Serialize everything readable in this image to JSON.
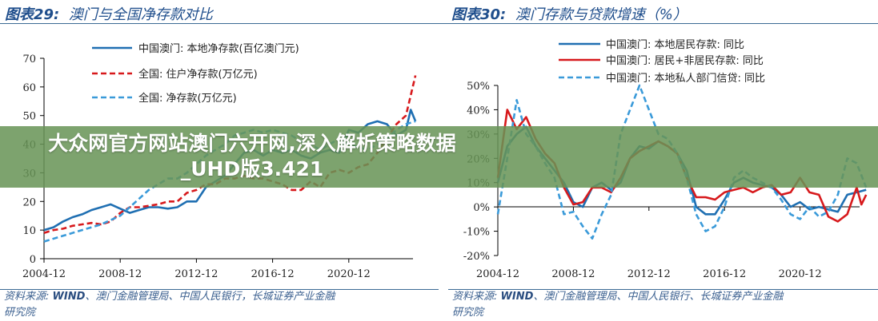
{
  "banner": {
    "text": "大众网官方网站澳门六开网,深入解析策略数据_UHD版3.421"
  },
  "panels": [
    {
      "title_prefix": "图表29:",
      "title_text": "澳门与全国净存款对比",
      "source_label": "资料来源:",
      "source_wind": "WIND",
      "source_rest": "、澳门金融管理局、中国人民银行，长城证券产业金融",
      "source_line2": "研究院"
    },
    {
      "title_prefix": "图表30:",
      "title_text": "澳门存款与贷款增速（%）",
      "source_label": "资料来源:",
      "source_wind": "WIND",
      "source_rest": "、澳门金融管理局、中国人民银行、长城证券产业金融",
      "source_line2": "研究院"
    }
  ],
  "chart_data": [
    {
      "type": "line",
      "title": "澳门与全国净存款对比",
      "ylim": [
        0,
        70
      ],
      "yticks": [
        "0",
        "10",
        "20",
        "30",
        "40",
        "50",
        "60",
        "70"
      ],
      "yticks_values": [
        0,
        10,
        20,
        30,
        40,
        50,
        60,
        70
      ],
      "xticks": [
        "2004-12",
        "2008-12",
        "2012-12",
        "2016-12",
        "2020-12"
      ],
      "grid": false,
      "legend": "top-left",
      "series": [
        {
          "name": "中国澳门: 本地净存款(百亿澳门元)",
          "color": "#1f6fb2",
          "dash": false,
          "x": [
            "2004-12",
            "2005-06",
            "2005-12",
            "2006-06",
            "2006-12",
            "2007-06",
            "2007-12",
            "2008-06",
            "2008-12",
            "2009-06",
            "2009-12",
            "2010-06",
            "2010-12",
            "2011-06",
            "2011-12",
            "2012-06",
            "2012-12",
            "2013-06",
            "2013-12",
            "2014-06",
            "2014-12",
            "2015-06",
            "2015-12",
            "2016-06",
            "2016-12",
            "2017-06",
            "2017-12",
            "2018-06",
            "2018-12",
            "2019-06",
            "2019-12",
            "2020-06",
            "2020-12",
            "2021-06",
            "2021-12",
            "2022-06",
            "2022-12",
            "2023-06",
            "2023-12",
            "2024-03",
            "2024-06"
          ],
          "values": [
            10,
            11,
            13,
            14.5,
            15.5,
            17,
            18,
            19,
            17.5,
            16,
            17,
            18,
            18,
            17.5,
            18,
            20,
            20,
            25,
            27,
            29,
            33,
            37,
            38,
            36,
            38,
            37,
            38,
            36,
            35,
            37,
            38,
            37,
            45,
            44,
            47,
            48,
            47,
            43,
            45,
            52,
            48
          ]
        },
        {
          "name": "全国: 住户净存款(万亿元)",
          "color": "#d7191c",
          "dash": true,
          "x": [
            "2004-12",
            "2005-06",
            "2005-12",
            "2006-06",
            "2006-12",
            "2007-06",
            "2007-12",
            "2008-06",
            "2008-12",
            "2009-06",
            "2009-12",
            "2010-06",
            "2010-12",
            "2011-06",
            "2011-12",
            "2012-06",
            "2012-12",
            "2013-06",
            "2013-12",
            "2014-06",
            "2014-12",
            "2015-06",
            "2015-12",
            "2016-06",
            "2016-12",
            "2017-06",
            "2017-12",
            "2018-06",
            "2018-12",
            "2019-06",
            "2019-12",
            "2020-06",
            "2020-12",
            "2021-06",
            "2021-12",
            "2022-06",
            "2022-12",
            "2023-06",
            "2023-12",
            "2024-06"
          ],
          "values": [
            9,
            10,
            10.5,
            11.5,
            12,
            12.5,
            12,
            13,
            16,
            18,
            18,
            18.5,
            19,
            20,
            20,
            23,
            24,
            26,
            26,
            28,
            28,
            29,
            28,
            28,
            27,
            26,
            24,
            24,
            27,
            25,
            30,
            31,
            30,
            32,
            33,
            37,
            42,
            47,
            50,
            64
          ]
        },
        {
          "name": "全国: 净存款(万亿元)",
          "color": "#3a9ad9",
          "dash": true,
          "x": [
            "2004-12",
            "2005-12",
            "2006-12",
            "2007-12",
            "2008-12",
            "2009-06",
            "2009-12",
            "2010-06",
            "2010-12",
            "2011-06",
            "2011-12",
            "2012-06",
            "2012-12",
            "2013-06",
            "2013-12",
            "2014-06",
            "2014-12",
            "2015-06",
            "2015-12",
            "2016-06",
            "2016-12",
            "2017-06",
            "2017-12",
            "2018-06",
            "2018-12",
            "2019-06",
            "2019-12",
            "2020-06",
            "2020-12",
            "2021-06",
            "2021-12",
            "2022-06",
            "2022-12",
            "2023-06",
            "2023-12",
            "2024-06"
          ],
          "values": [
            6,
            8,
            10,
            12,
            15,
            18,
            21,
            24,
            26,
            28,
            28,
            30,
            33,
            36,
            38,
            40,
            43,
            44,
            45,
            44,
            45,
            44,
            43,
            41,
            40,
            38,
            40,
            42,
            40,
            39,
            38,
            40,
            42,
            45,
            47,
            48
          ]
        }
      ]
    },
    {
      "type": "line",
      "title": "澳门存款与贷款增速（%）",
      "ylim": [
        -20,
        50
      ],
      "yticks": [
        "-20%",
        "-10%",
        "0%",
        "10%",
        "20%",
        "30%",
        "40%",
        "50%"
      ],
      "yticks_values": [
        -20,
        -10,
        0,
        10,
        20,
        30,
        40,
        50
      ],
      "xticks": [
        "2004-12",
        "2008-12",
        "2012-12",
        "2016-12",
        "2020-12"
      ],
      "grid": false,
      "legend": "top-center",
      "series": [
        {
          "name": "中国澳门: 本地居民存款: 同比",
          "color": "#1f6fb2",
          "dash": false,
          "x": [
            "2004-12",
            "2005-06",
            "2005-12",
            "2006-06",
            "2006-12",
            "2007-06",
            "2007-12",
            "2008-06",
            "2008-12",
            "2009-06",
            "2009-12",
            "2010-06",
            "2010-12",
            "2011-06",
            "2011-12",
            "2012-06",
            "2012-12",
            "2013-06",
            "2013-12",
            "2014-06",
            "2014-12",
            "2015-06",
            "2015-12",
            "2016-06",
            "2016-12",
            "2017-06",
            "2017-12",
            "2018-06",
            "2018-12",
            "2019-06",
            "2019-12",
            "2020-06",
            "2020-12",
            "2021-06",
            "2021-12",
            "2022-06",
            "2022-12",
            "2023-06",
            "2023-12",
            "2024-06"
          ],
          "values": [
            10,
            25,
            30,
            33,
            25,
            20,
            15,
            10,
            2,
            0,
            8,
            10,
            7,
            10,
            20,
            25,
            24,
            27,
            25,
            22,
            15,
            0,
            -3,
            -3,
            3,
            10,
            12,
            10,
            9,
            8,
            5,
            0,
            2,
            -1,
            0,
            -1,
            -2,
            5,
            6,
            7
          ]
        },
        {
          "name": "中国澳门: 居民+非居民存款: 同比",
          "color": "#d7191c",
          "dash": false,
          "x": [
            "2004-12",
            "2005-06",
            "2005-12",
            "2006-06",
            "2006-12",
            "2007-06",
            "2007-12",
            "2008-06",
            "2008-12",
            "2009-06",
            "2009-12",
            "2010-06",
            "2010-12",
            "2011-06",
            "2011-12",
            "2012-06",
            "2012-12",
            "2013-06",
            "2013-12",
            "2014-06",
            "2014-12",
            "2015-06",
            "2015-12",
            "2016-06",
            "2016-12",
            "2017-06",
            "2017-12",
            "2018-06",
            "2018-12",
            "2019-06",
            "2019-12",
            "2020-06",
            "2020-12",
            "2021-06",
            "2021-12",
            "2022-06",
            "2022-12",
            "2023-06",
            "2023-12",
            "2024-03",
            "2024-06"
          ],
          "values": [
            12,
            40,
            32,
            37,
            28,
            22,
            18,
            8,
            1,
            2,
            8,
            8,
            6,
            12,
            20,
            23,
            25,
            27,
            25,
            22,
            12,
            4,
            4,
            3,
            6,
            7,
            8,
            6,
            8,
            9,
            5,
            6,
            12,
            6,
            5,
            -4,
            -6,
            -3,
            8,
            1,
            5
          ]
        },
        {
          "name": "中国澳门: 本地私人部门信贷: 同比",
          "color": "#3a9ad9",
          "dash": true,
          "x": [
            "2004-12",
            "2005-06",
            "2005-12",
            "2006-06",
            "2006-12",
            "2007-06",
            "2007-12",
            "2008-06",
            "2008-12",
            "2009-06",
            "2009-12",
            "2010-06",
            "2010-12",
            "2011-06",
            "2011-12",
            "2012-06",
            "2012-12",
            "2013-06",
            "2013-12",
            "2014-06",
            "2014-12",
            "2015-06",
            "2015-12",
            "2016-06",
            "2016-12",
            "2017-06",
            "2017-12",
            "2018-06",
            "2018-12",
            "2019-06",
            "2019-12",
            "2020-06",
            "2020-12",
            "2021-06",
            "2021-12",
            "2022-06",
            "2022-12",
            "2023-06",
            "2023-12",
            "2024-06"
          ],
          "values": [
            -3,
            20,
            44,
            30,
            25,
            18,
            12,
            -3,
            -2,
            -8,
            -13,
            -3,
            5,
            30,
            40,
            50,
            40,
            30,
            28,
            22,
            12,
            -3,
            -10,
            -8,
            0,
            12,
            15,
            12,
            10,
            8,
            3,
            -3,
            -5,
            0,
            -4,
            -2,
            5,
            20,
            18,
            8
          ]
        }
      ]
    }
  ]
}
